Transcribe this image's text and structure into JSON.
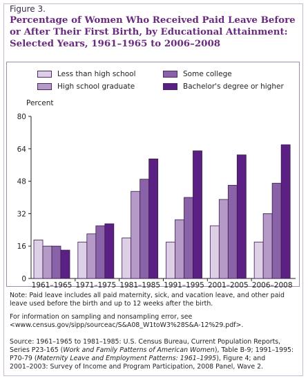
{
  "figure_label": "Figure 3.",
  "title_lines": [
    "Percentage of Women Who Received Paid Leave Before",
    "or After Their First Birth, by Educational Attainment:",
    "Selected Years, 1961–1965 to 2006–2008"
  ],
  "chart_data": {
    "type": "bar",
    "ylabel": "Percent",
    "ylim": [
      0,
      80
    ],
    "yticks": [
      0,
      16,
      32,
      48,
      64,
      80
    ],
    "categories": [
      "1961–1965",
      "1971–1975",
      "1981–1985",
      "1991–1995",
      "2001–2005",
      "2006–2008"
    ],
    "series": [
      {
        "name": "Less than high school",
        "color": "#ddd0e6",
        "values": [
          19,
          18,
          20,
          18,
          26,
          18
        ]
      },
      {
        "name": "High school graduate",
        "color": "#b59ac8",
        "values": [
          16,
          22,
          43,
          29,
          39,
          32
        ]
      },
      {
        "name": "Some college",
        "color": "#8a62a8",
        "values": [
          16,
          26,
          49,
          40,
          46,
          47
        ]
      },
      {
        "name": "Bachelor's degree or higher",
        "color": "#5b2083",
        "values": [
          14,
          27,
          59,
          63,
          61,
          66
        ]
      }
    ],
    "legend_position": "top",
    "grid": false
  },
  "notes": {
    "note": "Note: Paid leave includes all paid maternity, sick, and vacation leave, and other paid leave used before the birth and up to 12 weeks after the birth.",
    "info_line1": "For information on sampling and nonsampling error, see",
    "info_line2": "<www.census.gov/sipp/sourceac/S&A08_W1toW3%28S&A-12%29.pdf>.",
    "source_line1": "Source: 1961–1965 to 1981–1985: U.S. Census Bureau, Current Population Reports,",
    "source_line2_pre": "Series P23-165 (",
    "source_line2_ital": "Work and Family Patterns of American Women",
    "source_line2_post": "), Table B-9; 1991–1995:",
    "source_line3_pre": "P70-79 (",
    "source_line3_ital": "Maternity Leave and Employment Patterns: 1961–1995",
    "source_line3_post": "), Figure 4; and",
    "source_line4": "2001–2003: Survey of Income and Program Participation, 2008 Panel, Wave 2."
  }
}
